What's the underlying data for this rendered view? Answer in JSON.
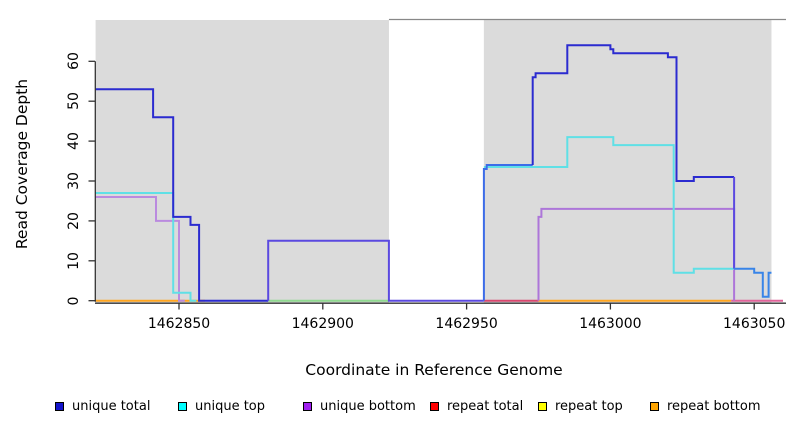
{
  "figure": {
    "x_axis": {
      "title": "Coordinate in Reference Genome",
      "tick_labels": [
        "1462850",
        "1462900",
        "1462950",
        "1463000",
        "1463050"
      ],
      "tick_values": [
        1462850,
        1462900,
        1462950,
        1463000,
        1463050
      ]
    },
    "y_axis": {
      "title": "Read Coverage Depth",
      "tick_labels": [
        "0",
        "10",
        "20",
        "30",
        "40",
        "50",
        "60"
      ],
      "tick_values": [
        0,
        10,
        20,
        30,
        40,
        50,
        60
      ]
    }
  },
  "legend": {
    "items": [
      {
        "label": "unique total",
        "color": "#1414CC"
      },
      {
        "label": "unique top",
        "color": "#00FFFF"
      },
      {
        "label": "unique bottom",
        "color": "#A020F0"
      },
      {
        "label": "repeat total",
        "color": "#FF0000"
      },
      {
        "label": "repeat top",
        "color": "#FFFF00"
      },
      {
        "label": "repeat bottom",
        "color": "#FFA500"
      }
    ]
  },
  "chart_data": {
    "type": "line",
    "subtype": "step-coverage",
    "title": "",
    "xlabel": "Coordinate in Reference Genome",
    "ylabel": "Read Coverage Depth",
    "xlim": [
      1462821,
      1463061
    ],
    "ylim": [
      0,
      70
    ],
    "grid": false,
    "legend_position": "bottom",
    "panel": {
      "color": "#DBDBDB",
      "from": 1462821,
      "to": 1463056
    },
    "gap_band": {
      "from": 1462923,
      "to": 1462956,
      "color": "#FFFFFF",
      "top_border_color": "#888888"
    },
    "series": [
      {
        "name": "repeat top",
        "legend_color": "#FFFF00",
        "segments": [
          {
            "color": "#8FD88F",
            "points": [
              [
                1462881,
                0
              ],
              [
                1462923,
                0
              ]
            ]
          }
        ]
      },
      {
        "name": "repeat bottom",
        "legend_color": "#FFA500",
        "segments": [
          {
            "color": "#FFA520",
            "points": [
              [
                1462821,
                0
              ],
              [
                1462859,
                0
              ]
            ]
          },
          {
            "color": "#FFA520",
            "points": [
              [
                1462975,
                0
              ],
              [
                1463042,
                0
              ]
            ]
          }
        ]
      },
      {
        "name": "repeat total",
        "legend_color": "#FF0000",
        "segments": [
          {
            "color": "#D8486E",
            "points": [
              [
                1462956,
                0
              ],
              [
                1462975,
                0
              ]
            ]
          },
          {
            "color": "#E0649A",
            "points": [
              [
                1463042,
                0
              ],
              [
                1463060,
                0
              ]
            ]
          }
        ]
      },
      {
        "name": "unique bottom",
        "legend_color": "#A020F0",
        "segments": [
          {
            "color": "#BA8ADF",
            "points": [
              [
                1462821,
                26
              ],
              [
                1462842,
                26
              ],
              [
                1462842,
                20
              ],
              [
                1462850,
                20
              ],
              [
                1462850,
                0
              ],
              [
                1462852,
                0
              ]
            ]
          },
          {
            "color": "#AD76D9",
            "points": [
              [
                1462975,
                0
              ],
              [
                1462975,
                21
              ],
              [
                1462976,
                21
              ],
              [
                1462976,
                23
              ],
              [
                1463043,
                23
              ],
              [
                1463043,
                0
              ]
            ]
          }
        ]
      },
      {
        "name": "unique top",
        "legend_color": "#00FFFF",
        "segments": [
          {
            "color": "#5FE0E6",
            "points": [
              [
                1462821,
                27
              ],
              [
                1462848,
                27
              ],
              [
                1462848,
                2
              ],
              [
                1462854,
                2
              ],
              [
                1462854,
                0
              ],
              [
                1462856,
                0
              ]
            ]
          },
          {
            "color": "#5FE0E6",
            "points": [
              [
                1462956,
                33.5
              ],
              [
                1462985,
                33.5
              ],
              [
                1462985,
                41
              ],
              [
                1463001,
                41
              ],
              [
                1463001,
                39
              ],
              [
                1463022,
                39
              ],
              [
                1463022,
                7
              ],
              [
                1463029,
                7
              ],
              [
                1463029,
                8
              ],
              [
                1463043,
                8
              ]
            ]
          }
        ]
      },
      {
        "name": "unique total",
        "legend_color": "#1414CC",
        "segments": [
          {
            "color": "#2B2BD0",
            "points": [
              [
                1462821,
                53
              ],
              [
                1462841,
                53
              ],
              [
                1462841,
                46
              ],
              [
                1462848,
                46
              ],
              [
                1462848,
                21
              ],
              [
                1462854,
                21
              ],
              [
                1462854,
                19
              ],
              [
                1462857,
                19
              ],
              [
                1462857,
                0
              ],
              [
                1462881,
                0
              ]
            ]
          },
          {
            "color": "#5B49E0",
            "points": [
              [
                1462881,
                0
              ],
              [
                1462881,
                15
              ],
              [
                1462923,
                15
              ],
              [
                1462923,
                0
              ],
              [
                1462956,
                0
              ]
            ]
          },
          {
            "color": "#3C6CE8",
            "points": [
              [
                1462956,
                0
              ],
              [
                1462956,
                33
              ],
              [
                1462957,
                33
              ],
              [
                1462957,
                34
              ],
              [
                1462973,
                34
              ]
            ]
          },
          {
            "color": "#2B2BD0",
            "points": [
              [
                1462973,
                34
              ],
              [
                1462973,
                56
              ],
              [
                1462974,
                56
              ],
              [
                1462974,
                57
              ],
              [
                1462985,
                57
              ],
              [
                1462985,
                64
              ],
              [
                1463000,
                64
              ],
              [
                1463000,
                63
              ],
              [
                1463001,
                63
              ],
              [
                1463001,
                62
              ],
              [
                1463020,
                62
              ],
              [
                1463020,
                61
              ],
              [
                1463023,
                61
              ],
              [
                1463023,
                30
              ],
              [
                1463029,
                30
              ],
              [
                1463029,
                31
              ],
              [
                1463043,
                31
              ]
            ]
          },
          {
            "color": "#5B49E0",
            "points": [
              [
                1463043,
                31
              ],
              [
                1463043,
                8
              ]
            ]
          },
          {
            "color": "#3884E8",
            "points": [
              [
                1463043,
                8
              ],
              [
                1463050,
                8
              ],
              [
                1463050,
                7
              ],
              [
                1463053,
                7
              ],
              [
                1463053,
                1
              ],
              [
                1463055,
                1
              ],
              [
                1463055,
                7
              ],
              [
                1463056,
                7
              ]
            ]
          }
        ]
      }
    ]
  }
}
